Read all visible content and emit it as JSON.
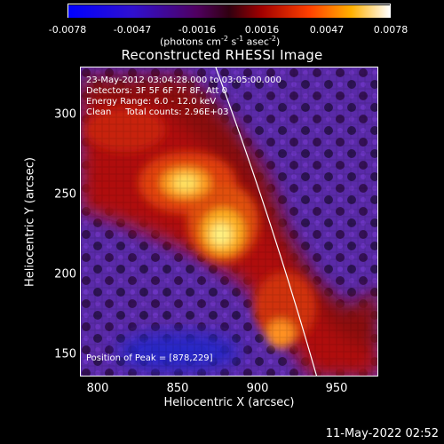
{
  "colorbar": {
    "ticks": [
      "-0.0078",
      "-0.0047",
      "-0.0016",
      "0.0016",
      "0.0047",
      "0.0078"
    ],
    "units_main": "(photons cm",
    "units_exp1": "-2",
    "units_mid1": " s",
    "units_exp2": "-1",
    "units_mid2": " asec",
    "units_exp3": "-2",
    "units_end": ")"
  },
  "title": "Reconstructed RHESSI Image",
  "info": {
    "time": "23-May-2012 03:04:28.000 to 03:05:00.000",
    "detectors": "Detectors: 3F 5F 6F 7F 8F, Att 0",
    "energy": "Energy Range: 6.0 - 12.0 keV",
    "clean": "Clean     Total counts: 2.96E+03",
    "peak": "Position of Peak = [878,229]"
  },
  "axes": {
    "xlabel": "Heliocentric X (arcsec)",
    "ylabel": "Heliocentric Y (arcsec)",
    "xticks": [
      "800",
      "850",
      "900",
      "950"
    ],
    "yticks": [
      "300",
      "250",
      "200",
      "150"
    ]
  },
  "timestamp": "11-May-2022 02:52",
  "colors": {
    "background": "#000000",
    "limb": "#ffffff"
  }
}
